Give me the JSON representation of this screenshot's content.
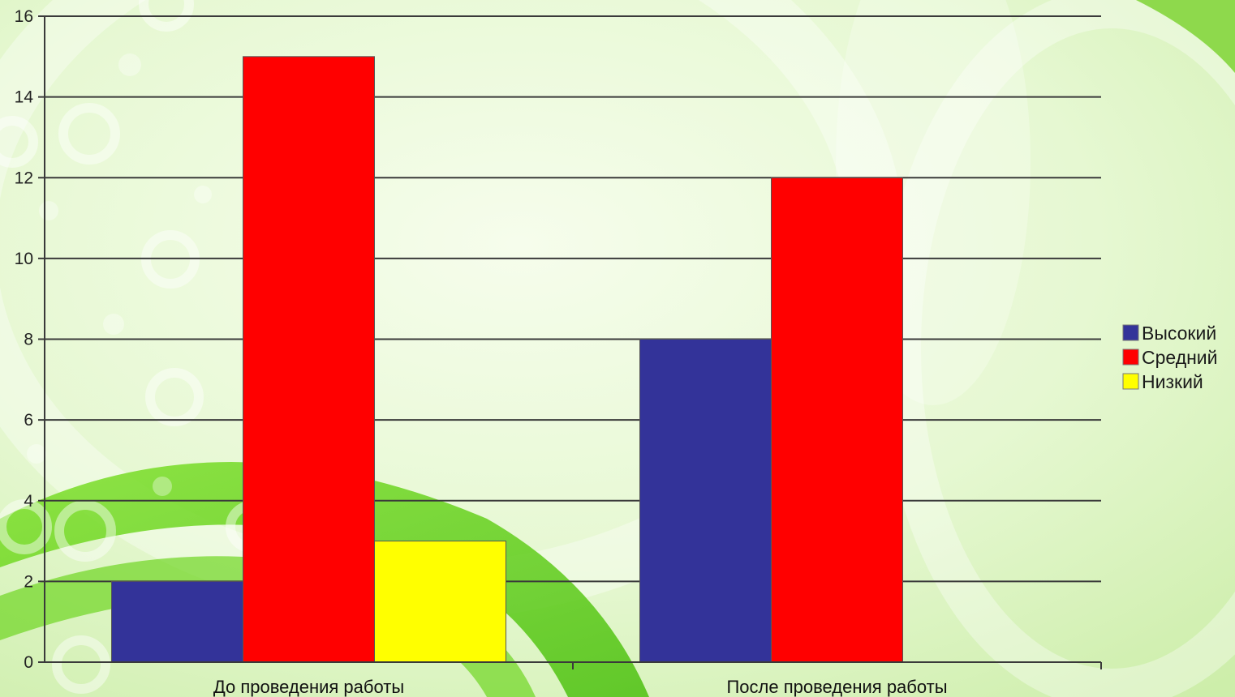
{
  "chart_data": {
    "type": "bar",
    "categories": [
      "До проведения работы",
      "После проведения работы"
    ],
    "series": [
      {
        "name": "Высокий",
        "values": [
          2,
          8
        ],
        "color": "#333399"
      },
      {
        "name": "Средний",
        "values": [
          15,
          12
        ],
        "color": "#ff0000"
      },
      {
        "name": "Низкий",
        "values": [
          3,
          0
        ],
        "color": "#ffff00"
      }
    ],
    "title": "",
    "xlabel": "",
    "ylabel": "",
    "ylim": [
      0,
      16
    ],
    "yticks": [
      0,
      2,
      4,
      6,
      8,
      10,
      12,
      14,
      16
    ],
    "grid": true,
    "legend_position": "right"
  },
  "colors": {
    "background_base": "#dff5c2",
    "background_light": "#f4fde9",
    "accent_green": "#5fcf18",
    "gridline": "#3a3a3a"
  }
}
